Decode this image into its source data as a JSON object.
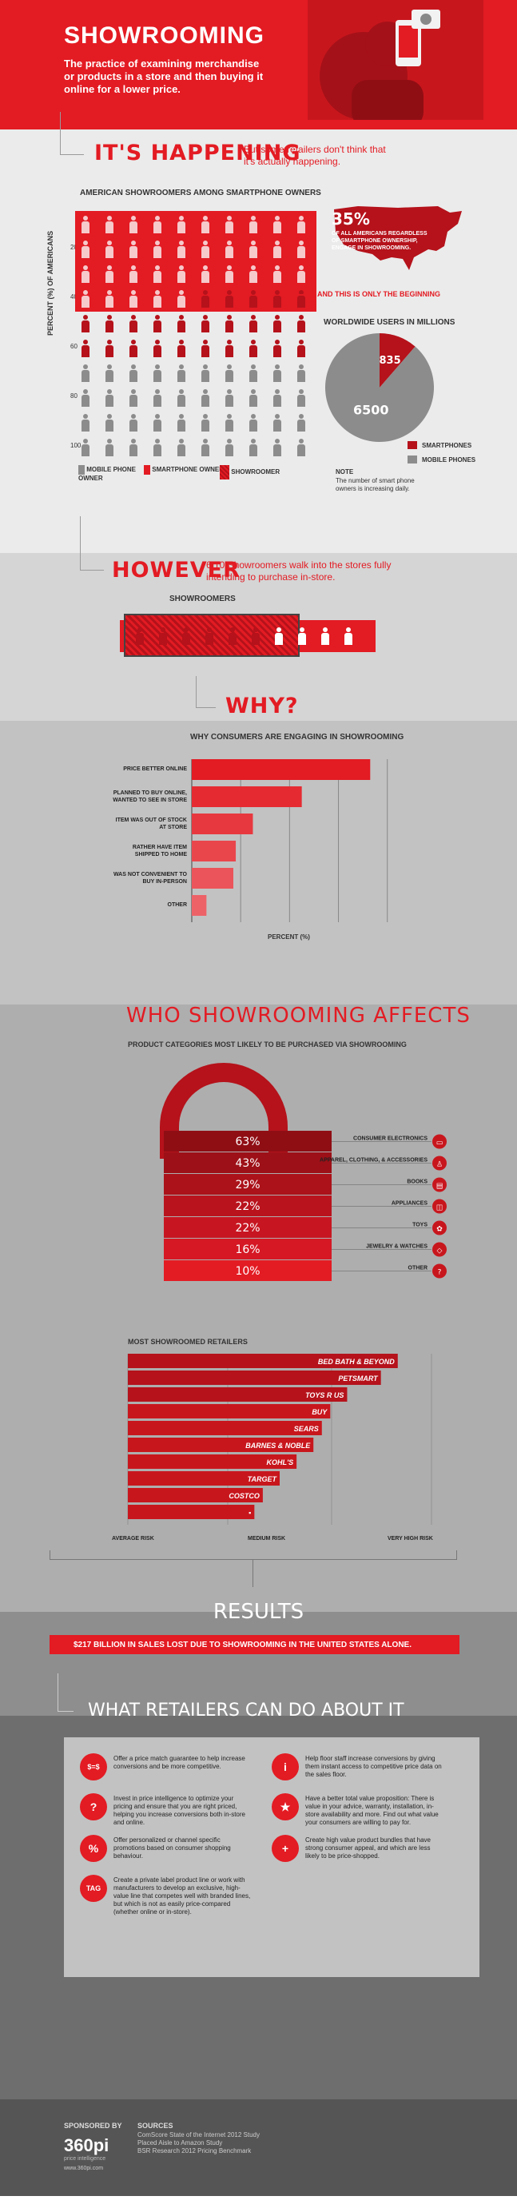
{
  "colors": {
    "red": "#e31b23",
    "dark_red": "#b5121b",
    "gray": "#8c8c8c",
    "dark_gray": "#6e6e6e"
  },
  "header": {
    "title": "SHOWROOMING",
    "description": "The practice of examining merchandise or products in a store and then buying it online for a lower price."
  },
  "happening": {
    "title": "IT'S HAPPENING",
    "subtitle": "But some retailers don't think that it's actually happening.",
    "grid_title": "AMERICAN SHOWROOMERS AMONG SMARTPHONE OWNERS",
    "y_label": "PERCENT (%) OF AMERICANS",
    "y_ticks": [
      "20",
      "40",
      "60",
      "80",
      "100"
    ],
    "legend": {
      "mobile": "MOBILE PHONE OWNER",
      "smartphone": "SMARTPHONE OWNER",
      "showroomer": "SHOWROOMER"
    },
    "stat_value": "35%",
    "stat_text": "OF ALL AMERICANS REGARDLESS OF SMARTPHONE OWNERSHIP, ENGAGE IN SHOWROOMING.",
    "beginning": "AND THIS IS ONLY THE BEGINNING",
    "pie_title": "WORLDWIDE USERS IN MILLIONS",
    "pie_legend": [
      "SMARTPHONES",
      "MOBILE PHONES"
    ],
    "note_title": "NOTE",
    "note_text": "The number of smart phone owners is increasing daily."
  },
  "however": {
    "title": "HOWEVER",
    "subtitle": "6/10 Showroomers walk into the stores fully intending to purchase in-store.",
    "label": "SHOWROOMERS"
  },
  "why": {
    "title": "WHY?",
    "subtitle": "WHY CONSUMERS ARE ENGAGING IN SHOWROOMING"
  },
  "affects": {
    "title": "WHO SHOWROOMING AFFECTS",
    "subtitle": "PRODUCT CATEGORIES MOST LIKELY TO BE PURCHASED VIA SHOWROOMING",
    "retailers_title": "MOST SHOWROOMED RETAILERS",
    "risk_labels": [
      "AVERAGE RISK",
      "MEDIUM RISK",
      "VERY HIGH RISK"
    ]
  },
  "results": {
    "title": "RESULTS",
    "banner": "$217 BILLION IN SALES LOST DUE TO SHOWROOMING IN THE UNITED STATES ALONE."
  },
  "actions": {
    "title": "WHAT RETAILERS CAN DO ABOUT IT",
    "items": [
      {
        "icon": "$=$",
        "text": "Offer a price match guarantee to help increase conversions and be more competitive."
      },
      {
        "icon": "?",
        "text": "Invest in price intelligence to optimize your pricing and ensure that you are right priced, helping you increase conversions both in-store and online."
      },
      {
        "icon": "%",
        "text": "Offer personalized or channel specific promotions based on consumer shopping behaviour."
      },
      {
        "icon": "TAG",
        "text": "Create a private label product line or work with manufacturers to develop an exclusive, high-value line that competes well with branded lines, but which is not as easily price-compared (whether online or in-store)."
      },
      {
        "icon": "i",
        "text": "Help floor staff increase conversions by giving them instant access to competitive price data on the sales floor."
      },
      {
        "icon": "★",
        "text": "Have a better total value proposition: There is value in your advice, warranty, installation, in-store availability and more. Find out what value your consumers are willing to pay for."
      },
      {
        "icon": "+",
        "text": "Create high value product bundles that have strong consumer appeal, and which are less likely to be price-shopped."
      }
    ]
  },
  "footer": {
    "sponsored": "SPONSORED BY",
    "logo": "360pi",
    "logo_tag": "price intelligence",
    "url": "www.360pi.com",
    "sources_title": "SOURCES",
    "sources": [
      "ComScore State of the Internet 2012 Study",
      "Placed Aisle to Amazon Study",
      "BSR Research 2012 Pricing Benchmark"
    ]
  },
  "chart_data": [
    {
      "type": "table",
      "title": "AMERICAN SHOWROOMERS AMONG SMARTPHONE OWNERS",
      "ylabel": "PERCENT (%) OF AMERICANS",
      "categories": [
        "SHOWROOMER",
        "SMARTPHONE OWNER",
        "MOBILE PHONE OWNER"
      ],
      "values": [
        35,
        60,
        100
      ]
    },
    {
      "type": "pie",
      "title": "WORLDWIDE USERS IN MILLIONS",
      "categories": [
        "SMARTPHONES",
        "MOBILE PHONES"
      ],
      "values": [
        835,
        6500
      ]
    },
    {
      "type": "bar",
      "title": "WHY CONSUMERS ARE ENGAGING IN SHOWROOMING",
      "xlabel": "PERCENT (%)",
      "categories": [
        "PRICE BETTER ONLINE",
        "PLANNED TO BUY ONLINE, WANTED TO SEE IN STORE",
        "ITEM WAS OUT OF STOCK AT STORE",
        "RATHER HAVE ITEM SHIPPED TO HOME",
        "WAS NOT CONVENIENT TO BUY IN-PERSON",
        "OTHER"
      ],
      "values": [
        73,
        45,
        25,
        18,
        17,
        6
      ],
      "xlim": [
        0,
        85
      ],
      "ticks": [
        20,
        40,
        60,
        80
      ]
    },
    {
      "type": "bar",
      "title": "PRODUCT CATEGORIES MOST LIKELY TO BE PURCHASED VIA SHOWROOMING",
      "categories": [
        "CONSUMER ELECTRONICS",
        "APPAREL, CLOTHING, & ACCESSORIES",
        "BOOKS",
        "APPLIANCES",
        "TOYS",
        "JEWELRY & WATCHES",
        "OTHER"
      ],
      "labels": [
        "63%",
        "43%",
        "29%",
        "22%",
        "22%",
        "16%",
        "10%"
      ],
      "values": [
        63,
        43,
        29,
        22,
        22,
        16,
        10
      ]
    },
    {
      "type": "bar",
      "title": "MOST SHOWROOMED RETAILERS",
      "categories": [
        "BED BATH & BEYOND",
        "PETSMART",
        "TOYS R US",
        "BUY",
        "SEARS",
        "BARNES & NOBLE",
        "KOHL'S",
        "TARGET",
        "COSTCO",
        "▪"
      ],
      "values": [
        32,
        30,
        26,
        24,
        23,
        22,
        20,
        18,
        16,
        15
      ],
      "xlim": [
        0,
        36
      ],
      "ticks": [
        "1%",
        "10%",
        "20%",
        "30%"
      ]
    }
  ]
}
